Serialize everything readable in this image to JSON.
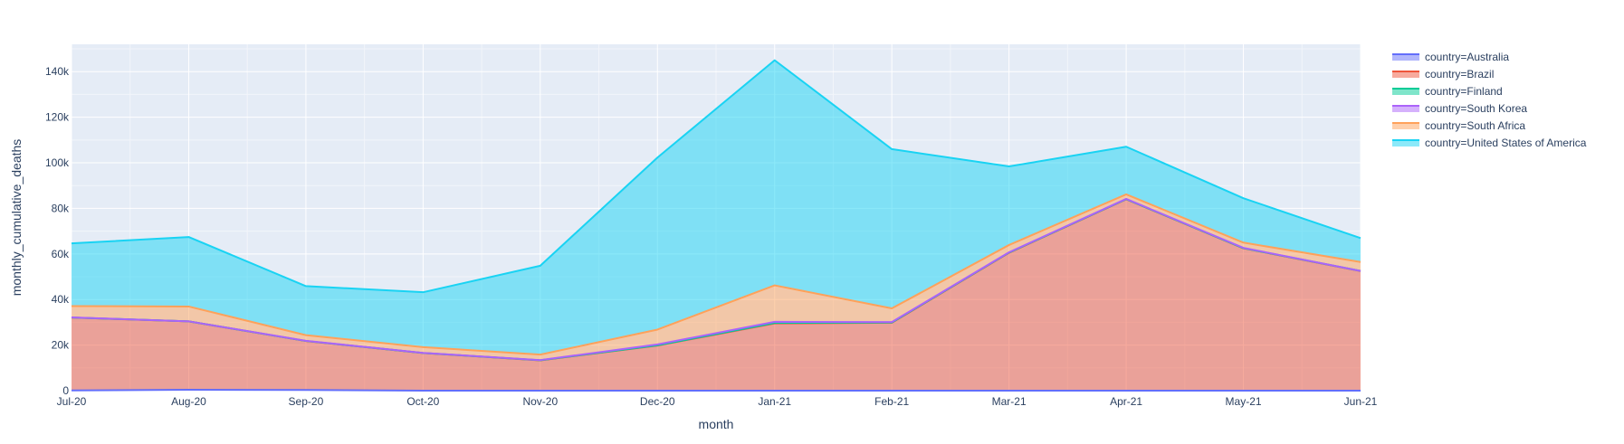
{
  "chart_data": {
    "type": "area",
    "stacked": true,
    "categories": [
      "Jul-20",
      "Aug-20",
      "Sep-20",
      "Oct-20",
      "Nov-20",
      "Dec-20",
      "Jan-21",
      "Feb-21",
      "Mar-21",
      "Apr-21",
      "May-21",
      "Jun-21"
    ],
    "xlabel": "month",
    "ylabel": "monthly_cumulative_deaths",
    "ylim": [
      0,
      152000
    ],
    "yticks": [
      0,
      20000,
      40000,
      60000,
      80000,
      100000,
      120000,
      140000
    ],
    "ytick_labels": [
      "0",
      "20k",
      "40k",
      "60k",
      "80k",
      "100k",
      "120k",
      "140k"
    ],
    "grid": true,
    "legend_position": "top-right",
    "series": [
      {
        "name": "country=Australia",
        "color": "#636efa",
        "values": [
          100,
          400,
          300,
          20,
          0,
          0,
          10,
          0,
          0,
          0,
          0,
          0
        ]
      },
      {
        "name": "country=Brazil",
        "color": "#ef553b",
        "values": [
          32000,
          30000,
          21500,
          16500,
          13300,
          19800,
          29500,
          29800,
          60500,
          84000,
          62500,
          52500
        ]
      },
      {
        "name": "country=Finland",
        "color": "#00cc96",
        "values": [
          10,
          10,
          5,
          20,
          50,
          100,
          200,
          100,
          100,
          50,
          30,
          20
        ]
      },
      {
        "name": "country=South Korea",
        "color": "#ab63fa",
        "values": [
          20,
          20,
          60,
          50,
          70,
          400,
          500,
          200,
          120,
          100,
          140,
          30
        ]
      },
      {
        "name": "country=South Africa",
        "color": "#ffa15a",
        "values": [
          5000,
          6500,
          2500,
          2500,
          2400,
          6500,
          16000,
          6000,
          3200,
          2000,
          2300,
          3900
        ]
      },
      {
        "name": "country=United States of America",
        "color": "#19d3f3",
        "values": [
          27500,
          30500,
          21500,
          24100,
          39000,
          75500,
          98800,
          69900,
          34500,
          20900,
          19500,
          10500
        ]
      }
    ]
  }
}
